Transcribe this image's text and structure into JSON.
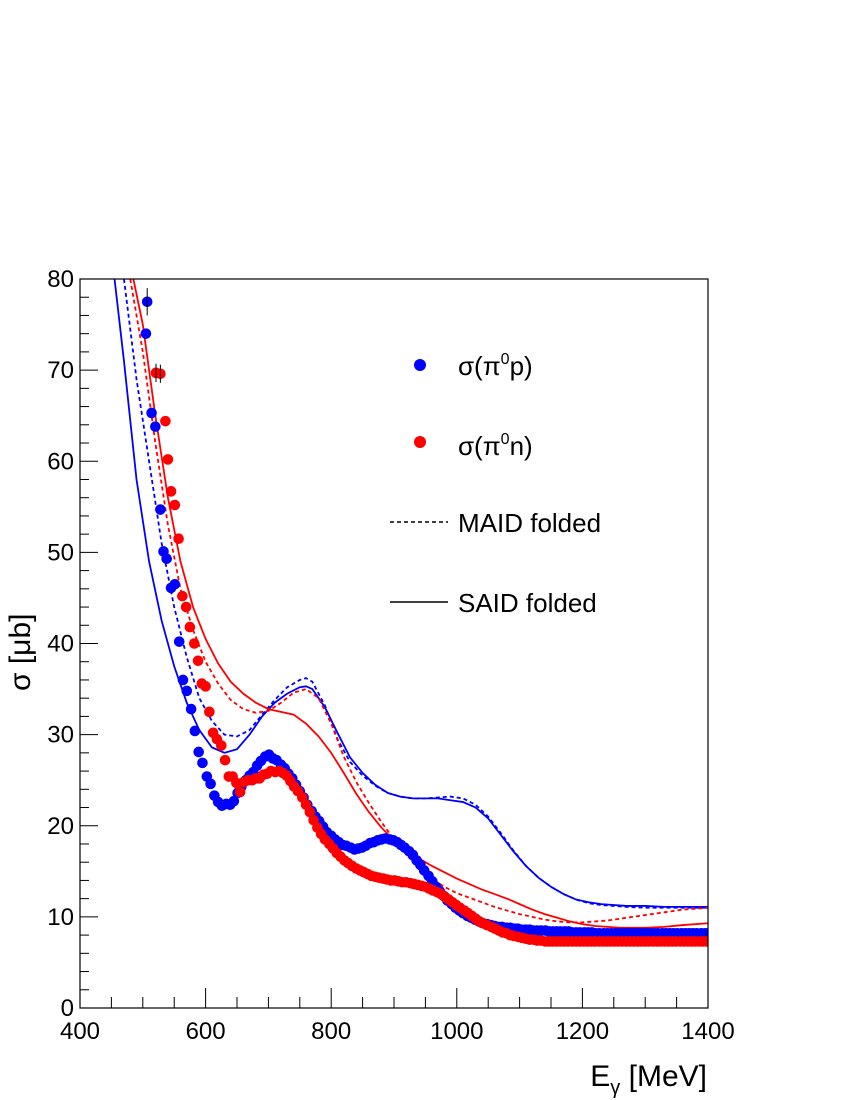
{
  "chart_data": {
    "type": "scatter",
    "title": "",
    "xlabel": "E",
    "xlabel_sub": "γ",
    "xlabel_unit": " [MeV]",
    "ylabel": "σ [μb]",
    "xlim": [
      400,
      1400
    ],
    "ylim": [
      0,
      80
    ],
    "x_ticks": [
      400,
      600,
      800,
      1000,
      1200,
      1400
    ],
    "y_ticks": [
      0,
      10,
      20,
      30,
      40,
      50,
      60,
      70,
      80
    ],
    "grid": false,
    "legend_position": "top-right",
    "colors": {
      "proton": "#0000ff",
      "neutron": "#ff0000",
      "line_legend": "#000000"
    },
    "legend": [
      {
        "label_pre": "σ(π",
        "label_sup": "0",
        "label_post": "p)",
        "style": "marker",
        "series": "data_p"
      },
      {
        "label_pre": "σ(π",
        "label_sup": "0",
        "label_post": "n)",
        "style": "marker",
        "series": "data_n"
      },
      {
        "label": "MAID folded",
        "style": "dashed"
      },
      {
        "label": "SAID folded",
        "style": "solid"
      }
    ],
    "series": [
      {
        "name": "data_p",
        "kind": "points",
        "color": "#0000ff",
        "x": [
          505,
          507,
          514,
          520,
          528,
          533,
          538,
          545,
          551,
          558,
          564,
          570,
          577,
          583,
          589,
          595,
          602,
          608,
          614,
          620,
          626,
          633,
          639,
          645,
          651,
          657,
          664,
          670,
          676,
          682,
          688,
          695,
          701,
          707,
          713,
          720,
          726,
          732,
          738,
          744,
          750,
          756,
          762,
          769,
          775,
          781,
          787,
          793,
          800,
          806,
          812,
          818,
          824,
          831,
          837,
          843,
          849,
          855,
          862,
          868,
          874,
          880,
          886,
          893,
          899,
          905,
          911,
          917,
          924,
          930,
          936,
          942,
          948,
          955,
          961,
          967,
          973,
          979,
          985,
          992,
          998,
          1004,
          1010,
          1017,
          1023,
          1029,
          1035,
          1041,
          1048,
          1054,
          1060,
          1066,
          1072,
          1079,
          1085,
          1091,
          1097,
          1103,
          1110,
          1116,
          1122,
          1128,
          1134,
          1141,
          1147,
          1153,
          1159,
          1165,
          1172,
          1178,
          1184,
          1190,
          1196,
          1203,
          1209,
          1215,
          1221,
          1227,
          1234,
          1240,
          1246,
          1252,
          1258,
          1265,
          1271,
          1277,
          1283,
          1289,
          1296,
          1302,
          1308,
          1314,
          1320,
          1327,
          1333,
          1339,
          1345,
          1351,
          1358,
          1364,
          1370,
          1376,
          1382,
          1389,
          1395,
          1400
        ],
        "y": [
          74.0,
          77.5,
          65.3,
          63.8,
          54.7,
          50.1,
          49.3,
          46.1,
          46.5,
          40.2,
          36.0,
          34.8,
          32.8,
          30.4,
          28.1,
          26.9,
          25.4,
          24.6,
          23.3,
          22.6,
          22.2,
          22.4,
          22.3,
          22.7,
          23.6,
          24.3,
          25.0,
          25.5,
          25.9,
          26.6,
          27.1,
          27.6,
          27.8,
          27.4,
          27.2,
          26.7,
          26.3,
          25.7,
          25.2,
          24.5,
          23.8,
          23.1,
          22.3,
          21.6,
          21.0,
          20.5,
          19.9,
          19.3,
          18.9,
          18.5,
          18.2,
          17.9,
          17.8,
          17.6,
          17.4,
          17.5,
          17.6,
          17.8,
          18.1,
          18.2,
          18.4,
          18.5,
          18.6,
          18.5,
          18.4,
          18.2,
          17.9,
          17.6,
          17.2,
          16.8,
          16.2,
          15.7,
          15.1,
          14.5,
          13.9,
          13.3,
          12.8,
          12.3,
          11.8,
          11.4,
          11.0,
          10.7,
          10.4,
          10.1,
          9.9,
          9.7,
          9.5,
          9.3,
          9.2,
          9.1,
          9.0,
          8.9,
          8.9,
          8.8,
          8.8,
          8.7,
          8.7,
          8.6,
          8.6,
          8.6,
          8.5,
          8.5,
          8.5,
          8.5,
          8.4,
          8.4,
          8.4,
          8.4,
          8.4,
          8.4,
          8.3,
          8.3,
          8.3,
          8.3,
          8.3,
          8.3,
          8.2,
          8.2,
          8.2,
          8.2,
          8.2,
          8.2,
          8.2,
          8.2,
          8.2,
          8.2,
          8.2,
          8.2,
          8.2,
          8.2,
          8.2,
          8.2,
          8.2,
          8.2,
          8.2,
          8.2,
          8.2,
          8.2,
          8.2,
          8.2,
          8.2,
          8.2,
          8.2,
          8.2,
          8.2,
          8.2
        ]
      },
      {
        "name": "data_n",
        "kind": "points",
        "color": "#ff0000",
        "x": [
          521,
          528,
          536,
          540,
          545,
          551,
          557,
          563,
          569,
          575,
          582,
          588,
          594,
          600,
          606,
          612,
          618,
          625,
          631,
          637,
          643,
          649,
          655,
          661,
          668,
          674,
          680,
          686,
          692,
          698,
          704,
          711,
          717,
          723,
          729,
          735,
          741,
          747,
          754,
          760,
          766,
          772,
          778,
          784,
          790,
          797,
          803,
          809,
          815,
          821,
          827,
          833,
          840,
          846,
          852,
          858,
          864,
          870,
          876,
          883,
          889,
          895,
          901,
          907,
          913,
          919,
          926,
          932,
          938,
          944,
          950,
          956,
          962,
          969,
          975,
          981,
          987,
          993,
          999,
          1005,
          1012,
          1018,
          1024,
          1030,
          1036,
          1042,
          1048,
          1055,
          1061,
          1067,
          1073,
          1079,
          1085,
          1091,
          1098,
          1104,
          1110,
          1116,
          1122,
          1128,
          1134,
          1141,
          1147,
          1153,
          1159,
          1165,
          1171,
          1177,
          1184,
          1190,
          1196,
          1202,
          1208,
          1214,
          1220,
          1227,
          1233,
          1239,
          1245,
          1251,
          1257,
          1263,
          1270,
          1276,
          1282,
          1288,
          1294,
          1300,
          1306,
          1313,
          1319,
          1325,
          1331,
          1337,
          1343,
          1349,
          1356,
          1362,
          1368,
          1374,
          1380,
          1386,
          1392,
          1398
        ],
        "y": [
          69.7,
          69.6,
          64.4,
          60.2,
          56.7,
          55.2,
          51.5,
          45.2,
          44.0,
          41.8,
          40.0,
          38.1,
          35.6,
          35.3,
          32.5,
          30.2,
          29.5,
          28.8,
          27.2,
          25.4,
          25.4,
          24.7,
          23.7,
          24.8,
          25.0,
          25.0,
          25.2,
          25.2,
          25.6,
          25.7,
          26.0,
          25.9,
          26.0,
          25.8,
          25.5,
          24.9,
          24.3,
          23.8,
          23.1,
          22.3,
          21.5,
          20.6,
          19.8,
          19.1,
          18.5,
          18.0,
          17.5,
          17.0,
          16.6,
          16.2,
          15.9,
          15.6,
          15.3,
          15.1,
          14.9,
          14.7,
          14.5,
          14.4,
          14.3,
          14.2,
          14.1,
          14.0,
          14.0,
          13.9,
          13.8,
          13.8,
          13.7,
          13.6,
          13.5,
          13.4,
          13.3,
          13.1,
          12.9,
          12.7,
          12.5,
          12.2,
          11.9,
          11.6,
          11.3,
          11.0,
          10.7,
          10.4,
          10.1,
          9.8,
          9.5,
          9.3,
          9.1,
          8.9,
          8.7,
          8.5,
          8.3,
          8.2,
          8.0,
          7.9,
          7.8,
          7.7,
          7.6,
          7.5,
          7.5,
          7.4,
          7.4,
          7.3,
          7.3,
          7.3,
          7.3,
          7.3,
          7.3,
          7.3,
          7.3,
          7.3,
          7.3,
          7.3,
          7.3,
          7.3,
          7.3,
          7.3,
          7.3,
          7.3,
          7.3,
          7.3,
          7.3,
          7.3,
          7.3,
          7.3,
          7.3,
          7.3,
          7.3,
          7.3,
          7.3,
          7.3,
          7.3,
          7.3,
          7.3,
          7.3,
          7.3,
          7.3,
          7.3,
          7.3,
          7.3,
          7.3,
          7.3,
          7.3,
          7.3,
          7.3
        ]
      },
      {
        "name": "MAID_p",
        "kind": "dashed",
        "color": "#0000ff",
        "x": [
          470,
          490,
          510,
          530,
          550,
          570,
          590,
          610,
          630,
          650,
          670,
          690,
          710,
          730,
          750,
          760,
          770,
          790,
          810,
          830,
          850,
          870,
          890,
          910,
          930,
          950,
          970,
          990,
          1010,
          1030,
          1050,
          1070,
          1090,
          1110,
          1130,
          1150,
          1170,
          1190,
          1210,
          1230,
          1250,
          1270,
          1300,
          1330,
          1360,
          1400
        ],
        "y": [
          80,
          69,
          60,
          51,
          44,
          38.5,
          34,
          31.5,
          30.0,
          29.8,
          30.5,
          32.2,
          33.8,
          35.2,
          36.0,
          36.2,
          35.8,
          33.2,
          29.5,
          27.0,
          25.5,
          24.4,
          23.6,
          23.2,
          23.0,
          23.0,
          23.1,
          23.2,
          23.0,
          22.3,
          21.0,
          19.2,
          17.3,
          15.6,
          14.3,
          13.3,
          12.5,
          11.9,
          11.5,
          11.3,
          11.2,
          11.1,
          11.0,
          11.0,
          11.0,
          11.0
        ]
      },
      {
        "name": "SAID_p",
        "kind": "solid",
        "color": "#0000ff",
        "x": [
          455,
          470,
          490,
          510,
          530,
          550,
          570,
          590,
          610,
          630,
          650,
          670,
          690,
          710,
          730,
          750,
          760,
          770,
          790,
          810,
          830,
          850,
          870,
          890,
          910,
          930,
          950,
          970,
          990,
          1010,
          1030,
          1050,
          1070,
          1090,
          1110,
          1130,
          1150,
          1170,
          1190,
          1210,
          1230,
          1250,
          1270,
          1300,
          1330,
          1360,
          1400
        ],
        "y": [
          80,
          71,
          58,
          49,
          42.5,
          37.5,
          33.5,
          30.5,
          28.6,
          28.0,
          28.4,
          30.0,
          32.0,
          33.5,
          34.5,
          35.2,
          35.3,
          35.0,
          33.0,
          30.2,
          27.5,
          25.8,
          24.5,
          23.6,
          23.2,
          23.0,
          23.0,
          23.0,
          22.8,
          22.6,
          22.0,
          20.8,
          19.0,
          17.2,
          15.6,
          14.3,
          13.3,
          12.5,
          11.9,
          11.6,
          11.4,
          11.3,
          11.2,
          11.2,
          11.1,
          11.1,
          11.1
        ]
      },
      {
        "name": "MAID_n",
        "kind": "dashed",
        "color": "#ff0000",
        "x": [
          480,
          500,
          520,
          540,
          560,
          580,
          600,
          620,
          640,
          660,
          680,
          700,
          720,
          740,
          760,
          780,
          800,
          820,
          840,
          860,
          880,
          900,
          920,
          940,
          960,
          980,
          1000,
          1020,
          1040,
          1060,
          1080,
          1100,
          1120,
          1140,
          1160,
          1180,
          1200,
          1220,
          1240,
          1260,
          1280,
          1300,
          1320,
          1340,
          1360,
          1400
        ],
        "y": [
          80,
          72,
          62,
          53,
          46,
          41.5,
          38,
          35.6,
          33.8,
          32.8,
          32.4,
          32.6,
          33.5,
          34.6,
          35.0,
          34.0,
          31.2,
          27.6,
          24.8,
          22.5,
          20.4,
          18.5,
          16.8,
          15.3,
          14.2,
          13.3,
          12.6,
          12.1,
          11.6,
          11.1,
          10.7,
          10.3,
          10.0,
          9.7,
          9.5,
          9.4,
          9.4,
          9.5,
          9.6,
          9.8,
          10.0,
          10.2,
          10.4,
          10.6,
          10.8,
          11.0
        ]
      },
      {
        "name": "SAID_n",
        "kind": "solid",
        "color": "#ff0000",
        "x": [
          485,
          500,
          520,
          540,
          560,
          580,
          600,
          620,
          640,
          660,
          680,
          700,
          720,
          740,
          760,
          780,
          800,
          820,
          840,
          860,
          880,
          900,
          920,
          940,
          960,
          980,
          1000,
          1020,
          1040,
          1060,
          1080,
          1100,
          1120,
          1140,
          1160,
          1180,
          1200,
          1220,
          1240,
          1260,
          1280,
          1300,
          1330,
          1360,
          1400
        ],
        "y": [
          80,
          75,
          65,
          56,
          49,
          44,
          40.5,
          37.8,
          35.8,
          34.5,
          33.5,
          32.8,
          32.5,
          32.2,
          31.2,
          29.8,
          28.0,
          25.8,
          23.5,
          21.5,
          19.8,
          18.4,
          17.3,
          16.4,
          15.6,
          14.9,
          14.2,
          13.6,
          13.0,
          12.5,
          12.0,
          11.4,
          10.8,
          10.3,
          9.9,
          9.5,
          9.2,
          9.0,
          8.9,
          8.8,
          8.8,
          8.8,
          8.9,
          9.1,
          9.3
        ]
      }
    ]
  }
}
